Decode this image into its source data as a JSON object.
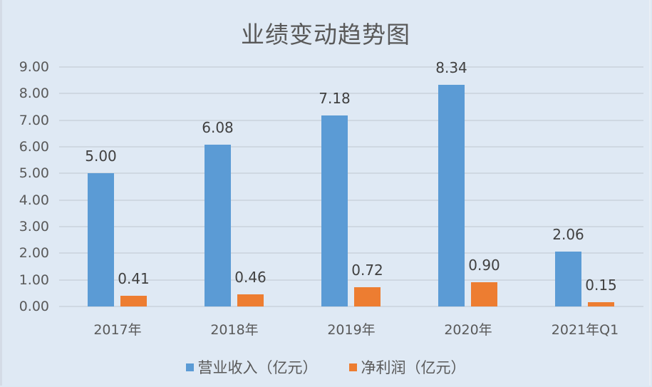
{
  "chart_data": {
    "type": "bar",
    "title": "业绩变动趋势图",
    "categories": [
      "2017年",
      "2018年",
      "2019年",
      "2020年",
      "2021年Q1"
    ],
    "series": [
      {
        "name": "营业收入（亿元）",
        "color": "#5b9bd5",
        "values": [
          5.0,
          6.08,
          7.18,
          8.34,
          2.06
        ]
      },
      {
        "name": "净利润（亿元）",
        "color": "#ed7d31",
        "values": [
          0.41,
          0.46,
          0.72,
          0.9,
          0.15
        ]
      }
    ],
    "data_labels": [
      [
        "5.00",
        "6.08",
        "7.18",
        "8.34",
        "2.06"
      ],
      [
        "0.41",
        "0.46",
        "0.72",
        "0.90",
        "0.15"
      ]
    ],
    "xlabel": "",
    "ylabel": "",
    "ylim": [
      0,
      9
    ],
    "yticks": [
      "0.00",
      "1.00",
      "2.00",
      "3.00",
      "4.00",
      "5.00",
      "6.00",
      "7.00",
      "8.00",
      "9.00"
    ],
    "grid": true,
    "legend_position": "bottom"
  }
}
